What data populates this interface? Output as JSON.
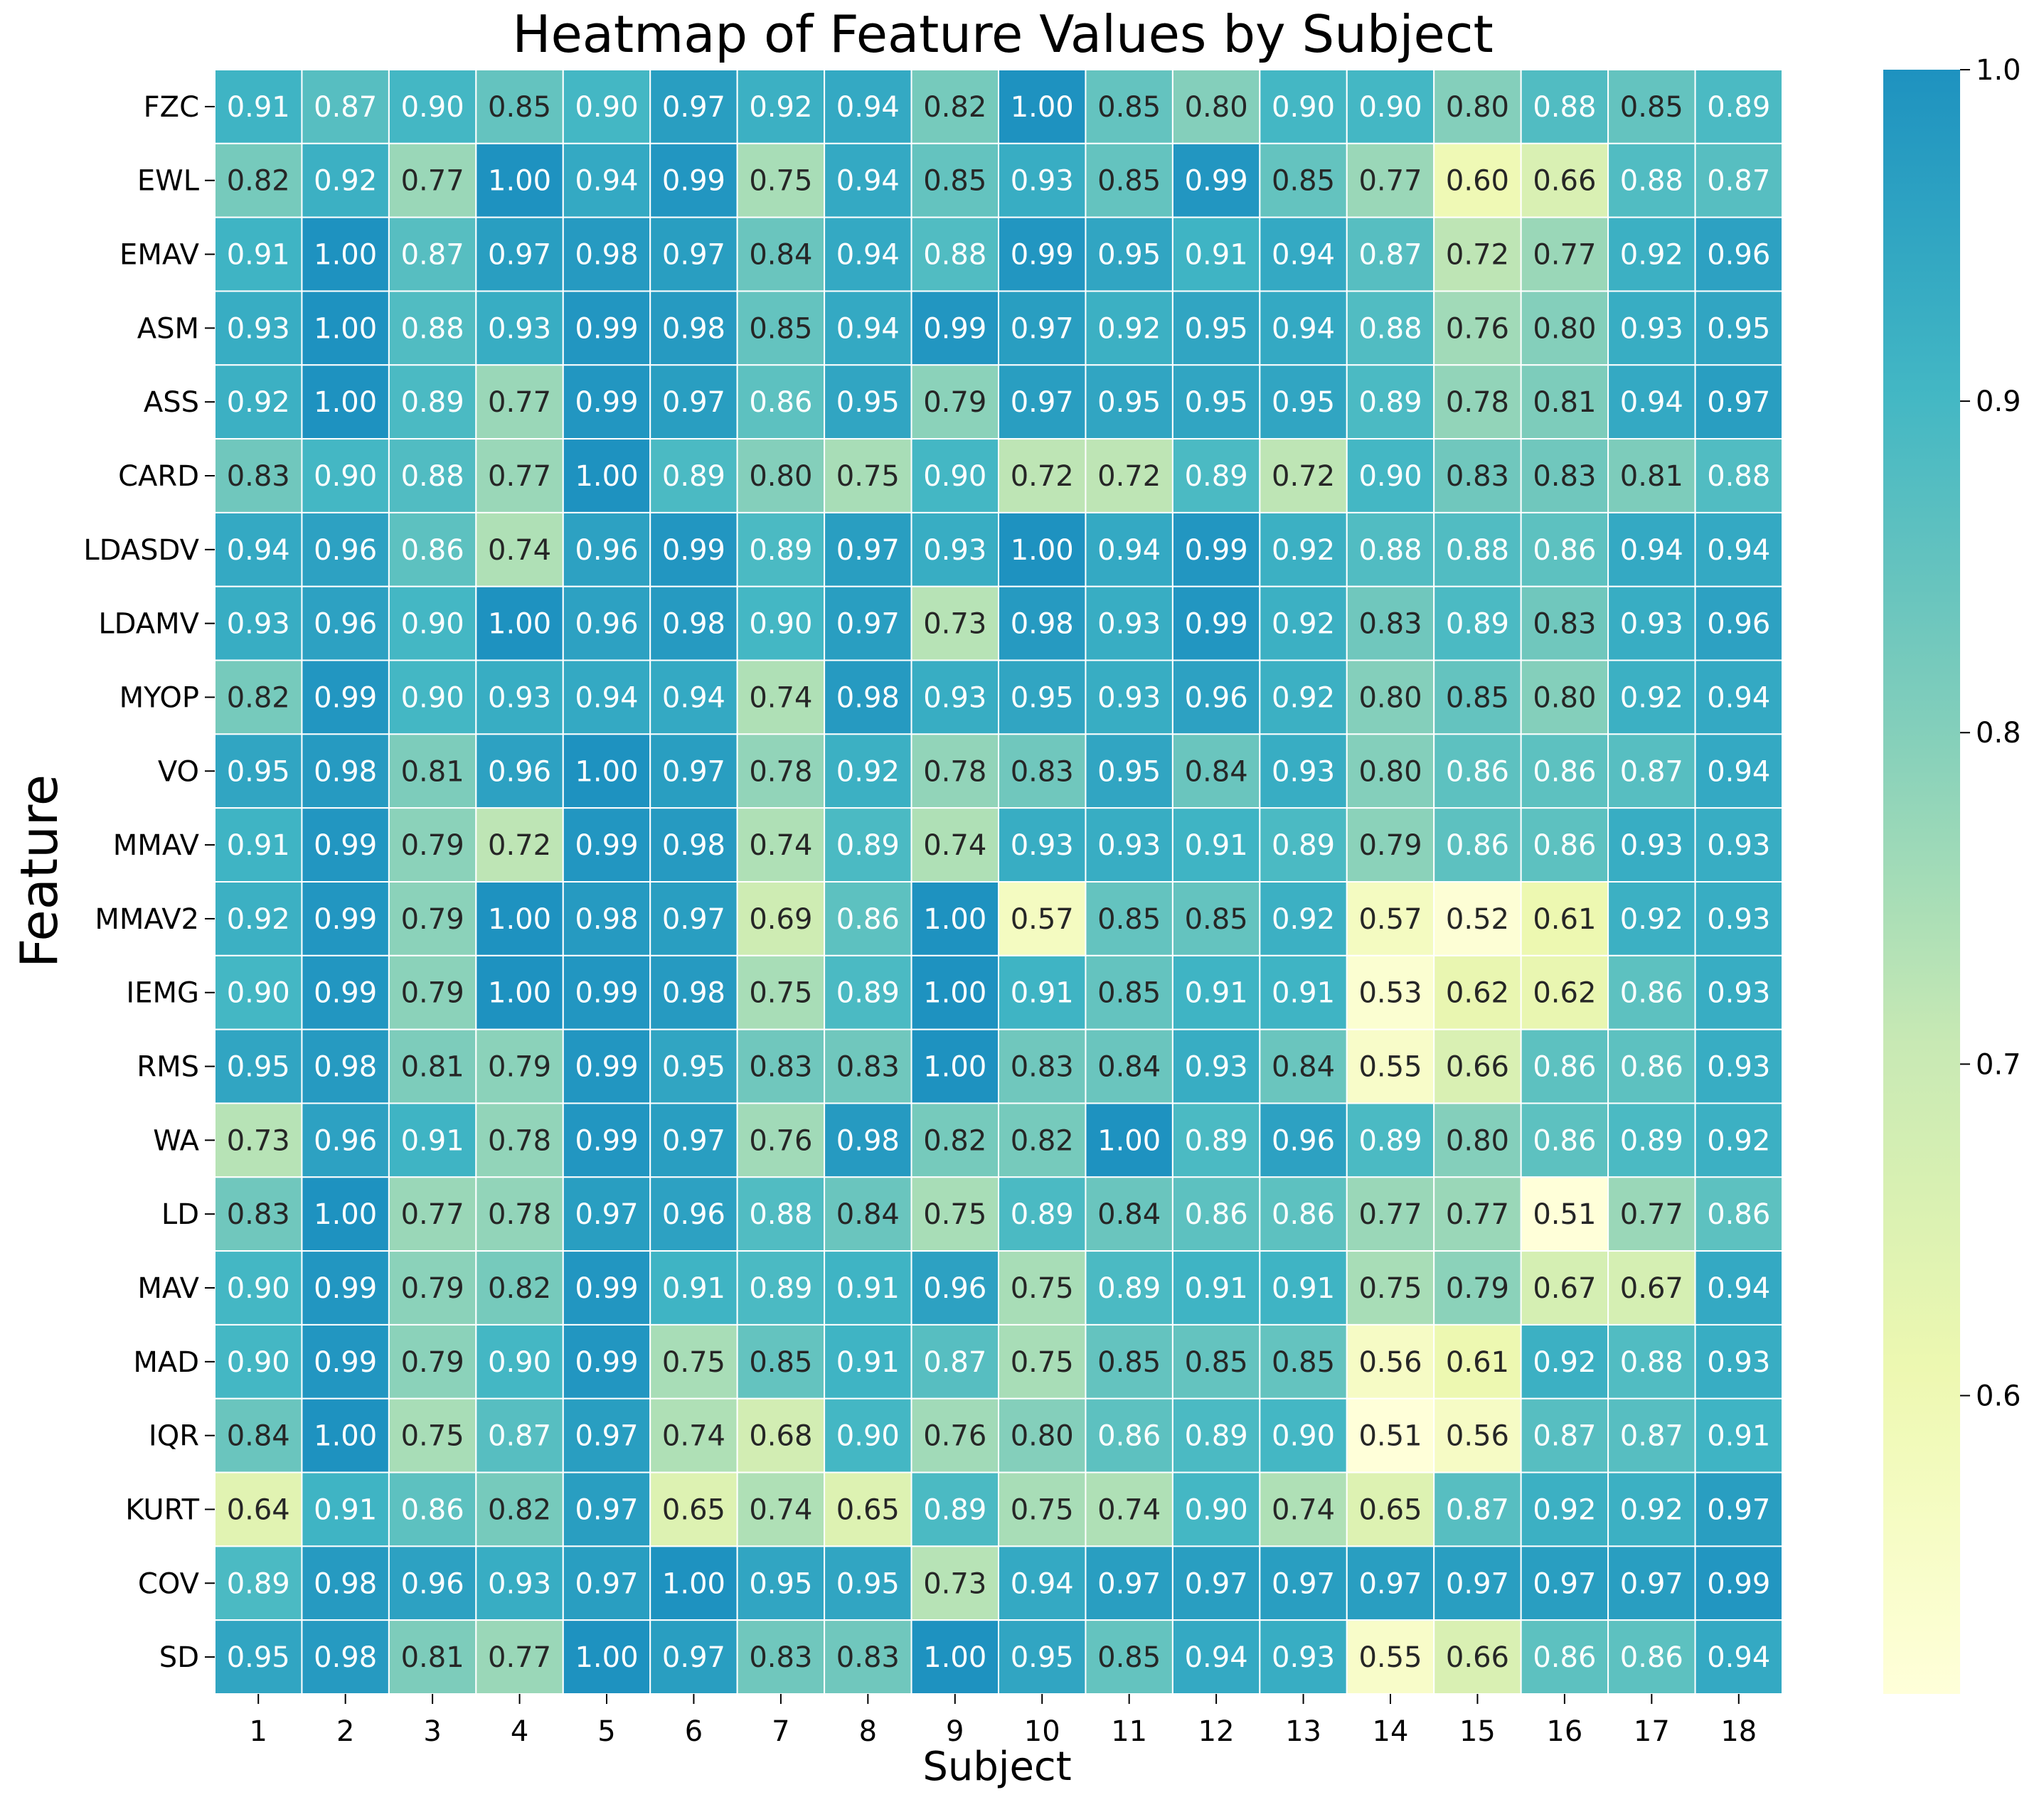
{
  "chart_data": {
    "type": "heatmap",
    "title": "Heatmap of Feature Values by Subject",
    "xlabel": "Subject",
    "ylabel": "Feature",
    "x_categories": [
      "1",
      "2",
      "3",
      "4",
      "5",
      "6",
      "7",
      "8",
      "9",
      "10",
      "11",
      "12",
      "13",
      "14",
      "15",
      "16",
      "17",
      "18"
    ],
    "y_categories": [
      "FZC",
      "EWL",
      "EMAV",
      "ASM",
      "ASS",
      "CARD",
      "LDASDV",
      "LDAMV",
      "MYOP",
      "VO",
      "MMAV",
      "MMAV2",
      "IEMG",
      "RMS",
      "WA",
      "LD",
      "MAV",
      "MAD",
      "IQR",
      "KURT",
      "COV",
      "SD"
    ],
    "values": [
      [
        0.91,
        0.87,
        0.9,
        0.85,
        0.9,
        0.97,
        0.92,
        0.94,
        0.82,
        1.0,
        0.85,
        0.8,
        0.9,
        0.9,
        0.8,
        0.88,
        0.85,
        0.89
      ],
      [
        0.82,
        0.92,
        0.77,
        1.0,
        0.94,
        0.99,
        0.75,
        0.94,
        0.85,
        0.93,
        0.85,
        0.99,
        0.85,
        0.77,
        0.6,
        0.66,
        0.88,
        0.87
      ],
      [
        0.91,
        1.0,
        0.87,
        0.97,
        0.98,
        0.97,
        0.84,
        0.94,
        0.88,
        0.99,
        0.95,
        0.91,
        0.94,
        0.87,
        0.72,
        0.77,
        0.92,
        0.96
      ],
      [
        0.93,
        1.0,
        0.88,
        0.93,
        0.99,
        0.98,
        0.85,
        0.94,
        0.99,
        0.97,
        0.92,
        0.95,
        0.94,
        0.88,
        0.76,
        0.8,
        0.93,
        0.95
      ],
      [
        0.92,
        1.0,
        0.89,
        0.77,
        0.99,
        0.97,
        0.86,
        0.95,
        0.79,
        0.97,
        0.95,
        0.95,
        0.95,
        0.89,
        0.78,
        0.81,
        0.94,
        0.97
      ],
      [
        0.83,
        0.9,
        0.88,
        0.77,
        1.0,
        0.89,
        0.8,
        0.75,
        0.9,
        0.72,
        0.72,
        0.89,
        0.72,
        0.9,
        0.83,
        0.83,
        0.81,
        0.88
      ],
      [
        0.94,
        0.96,
        0.86,
        0.74,
        0.96,
        0.99,
        0.89,
        0.97,
        0.93,
        1.0,
        0.94,
        0.99,
        0.92,
        0.88,
        0.88,
        0.86,
        0.94,
        0.94
      ],
      [
        0.93,
        0.96,
        0.9,
        1.0,
        0.96,
        0.98,
        0.9,
        0.97,
        0.73,
        0.98,
        0.93,
        0.99,
        0.92,
        0.83,
        0.89,
        0.83,
        0.93,
        0.96
      ],
      [
        0.82,
        0.99,
        0.9,
        0.93,
        0.94,
        0.94,
        0.74,
        0.98,
        0.93,
        0.95,
        0.93,
        0.96,
        0.92,
        0.8,
        0.85,
        0.8,
        0.92,
        0.94
      ],
      [
        0.95,
        0.98,
        0.81,
        0.96,
        1.0,
        0.97,
        0.78,
        0.92,
        0.78,
        0.83,
        0.95,
        0.84,
        0.93,
        0.8,
        0.86,
        0.86,
        0.87,
        0.94
      ],
      [
        0.91,
        0.99,
        0.79,
        0.72,
        0.99,
        0.98,
        0.74,
        0.89,
        0.74,
        0.93,
        0.93,
        0.91,
        0.89,
        0.79,
        0.86,
        0.86,
        0.93,
        0.93
      ],
      [
        0.92,
        0.99,
        0.79,
        1.0,
        0.98,
        0.97,
        0.69,
        0.86,
        1.0,
        0.57,
        0.85,
        0.85,
        0.92,
        0.57,
        0.52,
        0.61,
        0.92,
        0.93
      ],
      [
        0.9,
        0.99,
        0.79,
        1.0,
        0.99,
        0.98,
        0.75,
        0.89,
        1.0,
        0.91,
        0.85,
        0.91,
        0.91,
        0.53,
        0.62,
        0.62,
        0.86,
        0.93
      ],
      [
        0.95,
        0.98,
        0.81,
        0.79,
        0.99,
        0.95,
        0.83,
        0.83,
        1.0,
        0.83,
        0.84,
        0.93,
        0.84,
        0.55,
        0.66,
        0.86,
        0.86,
        0.93
      ],
      [
        0.73,
        0.96,
        0.91,
        0.78,
        0.99,
        0.97,
        0.76,
        0.98,
        0.82,
        0.82,
        1.0,
        0.89,
        0.96,
        0.89,
        0.8,
        0.86,
        0.89,
        0.92
      ],
      [
        0.83,
        1.0,
        0.77,
        0.78,
        0.97,
        0.96,
        0.88,
        0.84,
        0.75,
        0.89,
        0.84,
        0.86,
        0.86,
        0.77,
        0.77,
        0.51,
        0.77,
        0.86
      ],
      [
        0.9,
        0.99,
        0.79,
        0.82,
        0.99,
        0.91,
        0.89,
        0.91,
        0.96,
        0.75,
        0.89,
        0.91,
        0.91,
        0.75,
        0.79,
        0.67,
        0.67,
        0.94
      ],
      [
        0.9,
        0.99,
        0.79,
        0.9,
        0.99,
        0.75,
        0.85,
        0.91,
        0.87,
        0.75,
        0.85,
        0.85,
        0.85,
        0.56,
        0.61,
        0.92,
        0.88,
        0.93
      ],
      [
        0.84,
        1.0,
        0.75,
        0.87,
        0.97,
        0.74,
        0.68,
        0.9,
        0.76,
        0.8,
        0.86,
        0.89,
        0.9,
        0.51,
        0.56,
        0.87,
        0.87,
        0.91
      ],
      [
        0.64,
        0.91,
        0.86,
        0.82,
        0.97,
        0.65,
        0.74,
        0.65,
        0.89,
        0.75,
        0.74,
        0.9,
        0.74,
        0.65,
        0.87,
        0.92,
        0.92,
        0.97
      ],
      [
        0.89,
        0.98,
        0.96,
        0.93,
        0.97,
        1.0,
        0.95,
        0.95,
        0.73,
        0.94,
        0.97,
        0.97,
        0.97,
        0.97,
        0.97,
        0.97,
        0.97,
        0.99
      ],
      [
        0.95,
        0.98,
        0.81,
        0.77,
        1.0,
        0.97,
        0.83,
        0.83,
        1.0,
        0.95,
        0.85,
        0.94,
        0.93,
        0.55,
        0.66,
        0.86,
        0.86,
        0.94
      ]
    ],
    "value_format": "2 decimals",
    "colorbar": {
      "min": 0.51,
      "max": 1.0,
      "ticks": [
        "1.0",
        "0.9",
        "0.8",
        "0.7",
        "0.6"
      ],
      "tick_values": [
        1.0,
        0.9,
        0.8,
        0.7,
        0.6
      ],
      "colormap": "YlGnBu"
    },
    "grid": "white cell borders",
    "legend": "colorbar right"
  }
}
